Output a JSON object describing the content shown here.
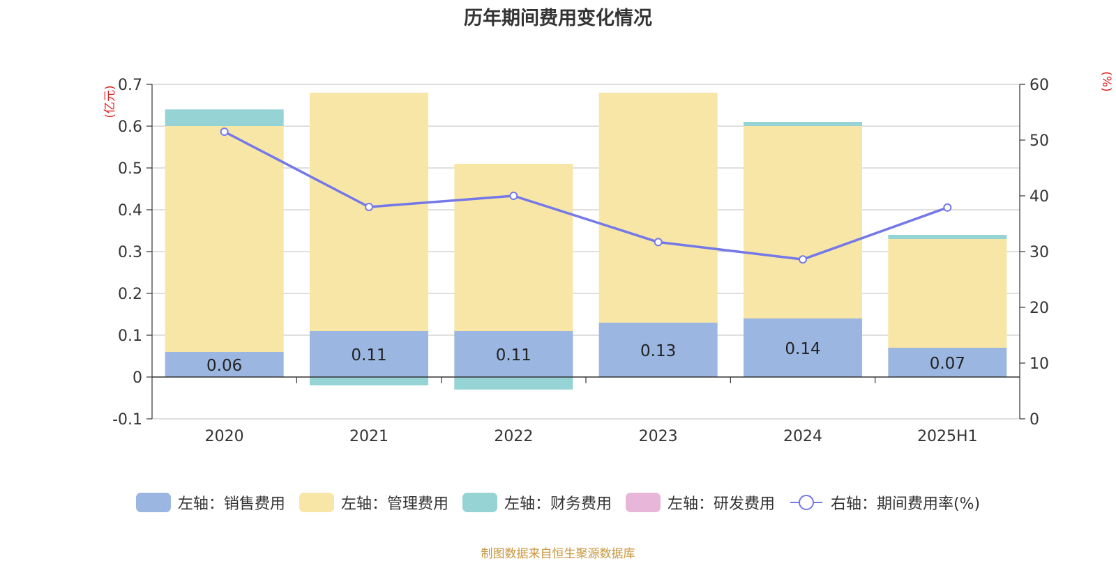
{
  "title": "历年期间费用变化情况",
  "source": "制图数据来自恒生聚源数据库",
  "chart_data": {
    "type": "bar",
    "stacked": true,
    "categories": [
      "2020",
      "2021",
      "2022",
      "2023",
      "2024",
      "2025H1"
    ],
    "y_left": {
      "unit": "(亿元)",
      "ylim": [
        -0.1,
        0.7
      ],
      "ticks": [
        "-0.1",
        "0",
        "0.1",
        "0.2",
        "0.3",
        "0.4",
        "0.5",
        "0.6",
        "0.7"
      ]
    },
    "y_right": {
      "unit": "(%)",
      "ylim": [
        0,
        60
      ],
      "ticks": [
        "0",
        "10",
        "20",
        "30",
        "40",
        "50",
        "60"
      ]
    },
    "grid": true,
    "legend_position": "bottom",
    "series": [
      {
        "name": "左轴：销售费用",
        "axis": "left",
        "color": "#9bb6e0",
        "values": [
          0.06,
          0.11,
          0.11,
          0.13,
          0.14,
          0.07
        ],
        "labels": [
          "0.06",
          "0.11",
          "0.11",
          "0.13",
          "0.14",
          "0.07"
        ]
      },
      {
        "name": "左轴：管理费用",
        "axis": "left",
        "color": "#f7e6a6",
        "values": [
          0.54,
          0.57,
          0.4,
          0.55,
          0.46,
          0.26
        ]
      },
      {
        "name": "左轴：财务费用",
        "axis": "left",
        "color": "#96d3d4",
        "values": [
          0.04,
          -0.02,
          -0.03,
          0.0,
          0.01,
          0.01
        ]
      },
      {
        "name": "左轴：研发费用",
        "axis": "left",
        "color": "#e8b6d8",
        "values": [
          0,
          0,
          0,
          0,
          0,
          0
        ]
      },
      {
        "name": "右轴：期间费用率(%)",
        "axis": "right",
        "type": "line",
        "color": "#7478e8",
        "values": [
          51.5,
          38.0,
          40.0,
          31.7,
          28.6,
          37.9
        ]
      }
    ]
  }
}
